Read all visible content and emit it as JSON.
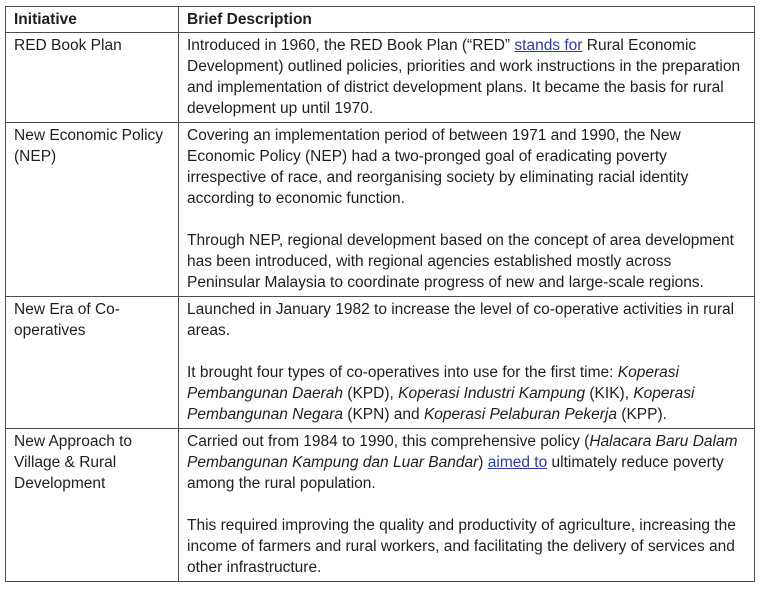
{
  "colors": {
    "link": "#2e3a9d",
    "border": "#4d4d4d",
    "text": "#1f1f1f",
    "background": "#ffffff"
  },
  "table": {
    "headers": [
      "Initiative",
      "Brief Description"
    ],
    "rows": [
      {
        "initiative": "RED Book Plan",
        "description": [
          [
            {
              "t": "Introduced in 1960, the RED Book Plan (“RED” "
            },
            {
              "t": "stands for",
              "s": "link"
            },
            {
              "t": " Rural Economic Development) outlined policies, priorities and work instructions in the preparation and implementation of district development plans. It became the basis for rural development up until 1970."
            }
          ]
        ]
      },
      {
        "initiative": "New Economic Policy (NEP)",
        "description": [
          [
            {
              "t": "Covering an implementation period of between 1971 and 1990, the New Economic Policy (NEP) had a two-pronged goal of eradicating poverty irrespective of race, and reorganising society by eliminating racial identity according to economic function."
            }
          ],
          [
            {
              "t": "Through NEP, regional development based on the concept of area development has been introduced, with regional agencies established mostly across Peninsular Malaysia to coordinate progress of new and large-scale regions."
            }
          ]
        ]
      },
      {
        "initiative": "New Era of Co-operatives",
        "description": [
          [
            {
              "t": "Launched in January 1982 to increase the level of co-operative activities in rural areas."
            }
          ],
          [
            {
              "t": "It brought four types of co-operatives into use for the first time: "
            },
            {
              "t": "Koperasi Pembangunan Daerah",
              "s": "italic"
            },
            {
              "t": " (KPD), "
            },
            {
              "t": "Koperasi Industri Kampung",
              "s": "italic"
            },
            {
              "t": " (KIK), "
            },
            {
              "t": "Koperasi Pembangunan Negara",
              "s": "italic"
            },
            {
              "t": " (KPN) and "
            },
            {
              "t": "Koperasi Pelaburan Pekerja",
              "s": "italic"
            },
            {
              "t": " (KPP)."
            }
          ]
        ]
      },
      {
        "initiative": "New Approach to Village & Rural Development",
        "description": [
          [
            {
              "t": "Carried out from 1984 to 1990, this comprehensive policy ("
            },
            {
              "t": "Halacara Baru Dalam Pembangunan Kampung dan Luar Bandar",
              "s": "italic"
            },
            {
              "t": ") "
            },
            {
              "t": "aimed to",
              "s": "link"
            },
            {
              "t": " ultimately reduce poverty among the rural population."
            }
          ],
          [
            {
              "t": "This required improving the quality and productivity of agriculture, increasing the income of farmers and rural workers, and facilitating the delivery of services and other infrastructure."
            }
          ]
        ]
      }
    ]
  }
}
